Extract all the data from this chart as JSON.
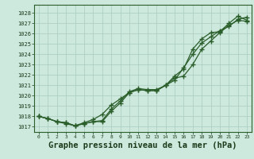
{
  "background_color": "#cde8dc",
  "plot_bg_color": "#cde8dc",
  "grid_color": "#a8ccbe",
  "line_color": "#2a5e2a",
  "marker_color": "#2a5e2a",
  "xlabel": "Graphe pression niveau de la mer (hPa)",
  "xlabel_fontsize": 7.5,
  "ylim": [
    1016.5,
    1028.8
  ],
  "xlim": [
    -0.5,
    23.5
  ],
  "yticks": [
    1017,
    1018,
    1019,
    1020,
    1021,
    1022,
    1023,
    1024,
    1025,
    1026,
    1027,
    1028
  ],
  "xticks": [
    0,
    1,
    2,
    3,
    4,
    5,
    6,
    7,
    8,
    9,
    10,
    11,
    12,
    13,
    14,
    15,
    16,
    17,
    18,
    19,
    20,
    21,
    22,
    23
  ],
  "series": [
    [
      1018.0,
      1017.8,
      1017.5,
      1017.4,
      1017.1,
      1017.3,
      1017.5,
      1017.5,
      1018.5,
      1019.3,
      1020.3,
      1020.6,
      1020.5,
      1020.5,
      1021.0,
      1021.7,
      1021.9,
      1023.0,
      1024.5,
      1025.3,
      1026.1,
      1026.8,
      1027.3,
      1027.2
    ],
    [
      1018.0,
      1017.8,
      1017.5,
      1017.3,
      1017.1,
      1017.4,
      1017.7,
      1018.2,
      1019.1,
      1019.7,
      1020.3,
      1020.6,
      1020.5,
      1020.5,
      1021.0,
      1021.9,
      1022.6,
      1024.5,
      1025.5,
      1026.1,
      1026.2,
      1027.0,
      1027.7,
      1027.3
    ],
    [
      1018.0,
      1017.8,
      1017.5,
      1017.4,
      1017.1,
      1017.3,
      1017.5,
      1017.6,
      1018.7,
      1019.5,
      1020.4,
      1020.7,
      1020.6,
      1020.6,
      1021.0,
      1021.5,
      1022.7,
      1024.0,
      1025.1,
      1025.7,
      1026.3,
      1026.7,
      1027.4,
      1027.6
    ]
  ]
}
